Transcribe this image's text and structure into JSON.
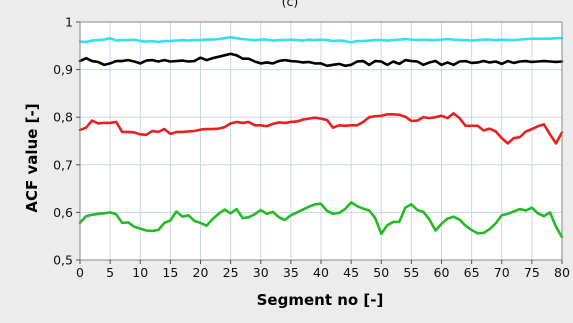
{
  "chart_data": {
    "type": "line",
    "title": "(c)",
    "xlabel": "Segment no [-]",
    "ylabel": "ACF value [-]",
    "xlim": [
      0,
      80
    ],
    "ylim": [
      0.5,
      1.0
    ],
    "x_ticks": [
      0,
      5,
      10,
      15,
      20,
      25,
      30,
      35,
      40,
      45,
      50,
      55,
      60,
      65,
      70,
      75,
      80
    ],
    "y_ticks": [
      0.5,
      0.6,
      0.7,
      0.8,
      0.9,
      1.0
    ],
    "y_tick_labels": [
      "0,5",
      "0,6",
      "0,7",
      "0,8",
      "0,9",
      "1"
    ],
    "grid": true,
    "legend": "none",
    "x": [
      0,
      1,
      2,
      3,
      4,
      5,
      6,
      7,
      8,
      9,
      10,
      11,
      12,
      13,
      14,
      15,
      16,
      17,
      18,
      19,
      20,
      21,
      22,
      23,
      24,
      25,
      26,
      27,
      28,
      29,
      30,
      31,
      32,
      33,
      34,
      35,
      36,
      37,
      38,
      39,
      40,
      41,
      42,
      43,
      44,
      45,
      46,
      47,
      48,
      49,
      50,
      51,
      52,
      53,
      54,
      55,
      56,
      57,
      58,
      59,
      60,
      61,
      62,
      63,
      64,
      65,
      66,
      67,
      68,
      69,
      70,
      71,
      72,
      73,
      74,
      75,
      76,
      77,
      78,
      79,
      80
    ],
    "series": [
      {
        "color": "#33e0f0",
        "values": [
          0.959,
          0.958,
          0.961,
          0.962,
          0.963,
          0.966,
          0.961,
          0.962,
          0.962,
          0.963,
          0.96,
          0.959,
          0.96,
          0.958,
          0.96,
          0.96,
          0.961,
          0.962,
          0.961,
          0.962,
          0.962,
          0.963,
          0.963,
          0.964,
          0.966,
          0.968,
          0.966,
          0.964,
          0.963,
          0.962,
          0.963,
          0.963,
          0.961,
          0.962,
          0.962,
          0.963,
          0.962,
          0.961,
          0.963,
          0.962,
          0.963,
          0.962,
          0.96,
          0.961,
          0.96,
          0.957,
          0.96,
          0.96,
          0.961,
          0.962,
          0.962,
          0.961,
          0.962,
          0.963,
          0.964,
          0.963,
          0.962,
          0.963,
          0.962,
          0.962,
          0.963,
          0.964,
          0.963,
          0.962,
          0.962,
          0.961,
          0.962,
          0.963,
          0.963,
          0.962,
          0.963,
          0.962,
          0.962,
          0.963,
          0.964,
          0.965,
          0.965,
          0.965,
          0.965,
          0.966,
          0.966
        ]
      },
      {
        "color": "#000000",
        "values": [
          0.918,
          0.924,
          0.918,
          0.916,
          0.91,
          0.913,
          0.918,
          0.918,
          0.92,
          0.917,
          0.913,
          0.919,
          0.92,
          0.917,
          0.92,
          0.917,
          0.918,
          0.919,
          0.917,
          0.918,
          0.925,
          0.92,
          0.924,
          0.927,
          0.93,
          0.933,
          0.93,
          0.923,
          0.923,
          0.917,
          0.913,
          0.915,
          0.913,
          0.918,
          0.92,
          0.918,
          0.917,
          0.915,
          0.916,
          0.913,
          0.913,
          0.908,
          0.91,
          0.912,
          0.908,
          0.91,
          0.917,
          0.918,
          0.91,
          0.918,
          0.917,
          0.91,
          0.917,
          0.912,
          0.92,
          0.918,
          0.917,
          0.91,
          0.915,
          0.918,
          0.91,
          0.915,
          0.91,
          0.917,
          0.918,
          0.914,
          0.915,
          0.918,
          0.915,
          0.917,
          0.912,
          0.918,
          0.914,
          0.917,
          0.918,
          0.916,
          0.917,
          0.918,
          0.917,
          0.916,
          0.917
        ]
      },
      {
        "color": "#e82020",
        "values": [
          0.773,
          0.778,
          0.793,
          0.787,
          0.788,
          0.788,
          0.79,
          0.769,
          0.769,
          0.768,
          0.764,
          0.763,
          0.771,
          0.769,
          0.775,
          0.765,
          0.769,
          0.769,
          0.77,
          0.771,
          0.774,
          0.775,
          0.775,
          0.776,
          0.779,
          0.787,
          0.79,
          0.788,
          0.79,
          0.783,
          0.783,
          0.781,
          0.786,
          0.789,
          0.788,
          0.79,
          0.791,
          0.795,
          0.797,
          0.799,
          0.797,
          0.794,
          0.778,
          0.783,
          0.782,
          0.783,
          0.783,
          0.79,
          0.8,
          0.802,
          0.803,
          0.806,
          0.806,
          0.805,
          0.801,
          0.792,
          0.793,
          0.8,
          0.798,
          0.8,
          0.803,
          0.798,
          0.808,
          0.798,
          0.782,
          0.782,
          0.782,
          0.772,
          0.776,
          0.77,
          0.756,
          0.745,
          0.756,
          0.758,
          0.77,
          0.775,
          0.781,
          0.785,
          0.764,
          0.745,
          0.768
        ]
      },
      {
        "color": "#22bb22",
        "values": [
          0.578,
          0.592,
          0.595,
          0.597,
          0.598,
          0.6,
          0.596,
          0.578,
          0.579,
          0.57,
          0.566,
          0.562,
          0.561,
          0.563,
          0.578,
          0.583,
          0.602,
          0.591,
          0.594,
          0.582,
          0.578,
          0.572,
          0.586,
          0.597,
          0.606,
          0.598,
          0.607,
          0.588,
          0.59,
          0.596,
          0.605,
          0.597,
          0.601,
          0.59,
          0.584,
          0.594,
          0.6,
          0.606,
          0.612,
          0.617,
          0.618,
          0.603,
          0.597,
          0.599,
          0.607,
          0.621,
          0.613,
          0.608,
          0.604,
          0.588,
          0.555,
          0.573,
          0.58,
          0.58,
          0.61,
          0.617,
          0.605,
          0.601,
          0.585,
          0.562,
          0.576,
          0.587,
          0.591,
          0.585,
          0.572,
          0.563,
          0.556,
          0.557,
          0.565,
          0.577,
          0.594,
          0.597,
          0.602,
          0.607,
          0.604,
          0.61,
          0.598,
          0.592,
          0.6,
          0.57,
          0.548
        ]
      }
    ]
  }
}
